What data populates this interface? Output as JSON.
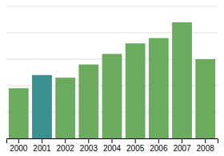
{
  "chart_data": {
    "type": "bar",
    "categories": [
      "2000",
      "2001",
      "2002",
      "2003",
      "2004",
      "2005",
      "2006",
      "2007",
      "2008"
    ],
    "values": [
      38,
      48,
      46,
      56,
      64,
      72,
      76,
      88,
      60
    ],
    "colors": [
      "#6aab5e",
      "#3a9090",
      "#6aab5e",
      "#6aab5e",
      "#6aab5e",
      "#6aab5e",
      "#6aab5e",
      "#6aab5e",
      "#6aab5e"
    ],
    "ylim": [
      0,
      100
    ],
    "yticks": [
      0,
      20,
      40,
      60,
      80,
      100
    ],
    "grid": true,
    "tick_labels": "x"
  }
}
